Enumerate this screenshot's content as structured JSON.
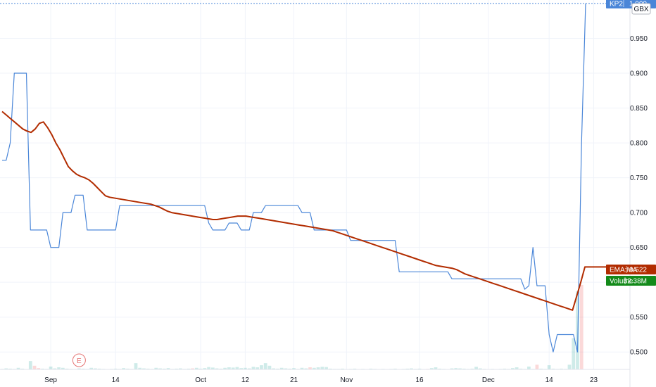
{
  "chart_data": {
    "type": "line",
    "currency": "GBX",
    "ylim": [
      0.475,
      1.005
    ],
    "y_ticks": [
      0.5,
      0.55,
      0.6,
      0.65,
      0.7,
      0.75,
      0.8,
      0.85,
      0.9,
      0.95
    ],
    "y_tick_labels": [
      "0.500",
      "0.550",
      "0.600",
      "0.650",
      "0.700",
      "0.750",
      "0.800",
      "0.850",
      "0.900",
      "0.950"
    ],
    "x_tick_labels": [
      {
        "label": "Sep",
        "i": 12
      },
      {
        "label": "14",
        "i": 28
      },
      {
        "label": "Oct",
        "i": 49
      },
      {
        "label": "12",
        "i": 60
      },
      {
        "label": "21",
        "i": 72
      },
      {
        "label": "Nov",
        "i": 85
      },
      {
        "label": "16",
        "i": 103
      },
      {
        "label": "Dec",
        "i": 120
      },
      {
        "label": "14",
        "i": 135
      },
      {
        "label": "23",
        "i": 146
      }
    ],
    "earnings_marker": {
      "label": "E",
      "i": 19
    },
    "series": [
      {
        "name": "KP2",
        "color": "#4a86d8",
        "last_value": "1.000",
        "values": [
          0.775,
          0.775,
          0.8,
          0.9,
          0.9,
          0.9,
          0.9,
          0.675,
          0.675,
          0.675,
          0.675,
          0.675,
          0.65,
          0.65,
          0.65,
          0.7,
          0.7,
          0.7,
          0.725,
          0.725,
          0.725,
          0.675,
          0.675,
          0.675,
          0.675,
          0.675,
          0.675,
          0.675,
          0.675,
          0.71,
          0.71,
          0.71,
          0.71,
          0.71,
          0.71,
          0.71,
          0.71,
          0.71,
          0.71,
          0.71,
          0.71,
          0.71,
          0.71,
          0.71,
          0.71,
          0.71,
          0.71,
          0.71,
          0.71,
          0.71,
          0.71,
          0.685,
          0.675,
          0.675,
          0.675,
          0.675,
          0.685,
          0.685,
          0.685,
          0.675,
          0.675,
          0.675,
          0.7,
          0.7,
          0.7,
          0.71,
          0.71,
          0.71,
          0.71,
          0.71,
          0.71,
          0.71,
          0.71,
          0.71,
          0.7,
          0.7,
          0.7,
          0.675,
          0.675,
          0.675,
          0.675,
          0.675,
          0.675,
          0.675,
          0.675,
          0.675,
          0.66,
          0.66,
          0.66,
          0.66,
          0.66,
          0.66,
          0.66,
          0.66,
          0.66,
          0.66,
          0.66,
          0.66,
          0.615,
          0.615,
          0.615,
          0.615,
          0.615,
          0.615,
          0.615,
          0.615,
          0.615,
          0.615,
          0.615,
          0.615,
          0.615,
          0.605,
          0.605,
          0.605,
          0.605,
          0.605,
          0.605,
          0.605,
          0.605,
          0.605,
          0.605,
          0.605,
          0.605,
          0.605,
          0.605,
          0.605,
          0.605,
          0.605,
          0.605,
          0.59,
          0.595,
          0.65,
          0.595,
          0.595,
          0.595,
          0.525,
          0.5,
          0.525,
          0.525,
          0.525,
          0.525,
          0.525,
          0.5,
          0.8,
          1.0
        ]
      },
      {
        "name": "EMA:MA",
        "color": "#b22c00",
        "last_value": "0.622",
        "values": [
          0.845,
          0.84,
          0.835,
          0.83,
          0.825,
          0.82,
          0.817,
          0.815,
          0.82,
          0.828,
          0.83,
          0.822,
          0.812,
          0.8,
          0.79,
          0.778,
          0.766,
          0.76,
          0.755,
          0.752,
          0.75,
          0.747,
          0.742,
          0.736,
          0.73,
          0.724,
          0.722,
          0.721,
          0.72,
          0.719,
          0.718,
          0.717,
          0.716,
          0.715,
          0.714,
          0.713,
          0.712,
          0.71,
          0.708,
          0.705,
          0.702,
          0.7,
          0.699,
          0.698,
          0.697,
          0.696,
          0.695,
          0.694,
          0.693,
          0.692,
          0.691,
          0.69,
          0.69,
          0.691,
          0.692,
          0.693,
          0.694,
          0.695,
          0.695,
          0.695,
          0.694,
          0.693,
          0.692,
          0.691,
          0.69,
          0.689,
          0.688,
          0.687,
          0.686,
          0.685,
          0.684,
          0.683,
          0.682,
          0.681,
          0.68,
          0.679,
          0.678,
          0.677,
          0.676,
          0.675,
          0.674,
          0.672,
          0.67,
          0.668,
          0.666,
          0.664,
          0.662,
          0.66,
          0.658,
          0.656,
          0.654,
          0.652,
          0.65,
          0.648,
          0.646,
          0.644,
          0.642,
          0.64,
          0.638,
          0.636,
          0.634,
          0.632,
          0.63,
          0.628,
          0.626,
          0.624,
          0.623,
          0.622,
          0.621,
          0.62,
          0.618,
          0.615,
          0.612,
          0.61,
          0.608,
          0.606,
          0.604,
          0.602,
          0.6,
          0.598,
          0.596,
          0.594,
          0.592,
          0.59,
          0.588,
          0.586,
          0.584,
          0.582,
          0.58,
          0.578,
          0.576,
          0.574,
          0.572,
          0.57,
          0.568,
          0.566,
          0.564,
          0.562,
          0.56,
          0.58,
          0.6,
          0.622,
          0.622,
          0.622,
          0.622,
          0.622,
          0.622,
          0.622,
          0.622,
          0.622
        ]
      }
    ],
    "volume": {
      "name": "Volume",
      "last_value": "32.38M",
      "color_up": "#26a69a",
      "color_down": "#ef5350",
      "values": [
        0.2,
        0.4,
        0.3,
        0.2,
        0.6,
        0.3,
        0.1,
        3.2,
        1.4,
        0.5,
        0.3,
        0.2,
        1.1,
        0.4,
        0.8,
        0.6,
        0.3,
        0.2,
        0.1,
        0.4,
        0.3,
        0.2,
        0.6,
        0.4,
        0.3,
        0.2,
        0.1,
        0.2,
        0.3,
        0.2,
        0.5,
        0.3,
        0.2,
        2.4,
        0.6,
        0.4,
        0.3,
        0.2,
        0.6,
        0.4,
        0.3,
        0.5,
        0.2,
        0.3,
        0.4,
        0.2,
        0.3,
        0.4,
        0.6,
        0.3,
        0.5,
        0.9,
        0.7,
        0.4,
        0.3,
        0.6,
        0.8,
        0.7,
        0.9,
        0.5,
        0.6,
        0.4,
        1.0,
        0.8,
        1.6,
        2.4,
        1.4,
        0.4,
        0.3,
        0.6,
        0.4,
        0.3,
        0.5,
        0.2,
        0.6,
        0.4,
        0.8,
        0.6,
        0.8,
        1.0,
        0.9,
        0.3,
        0.2,
        0.2,
        0.3,
        0.1,
        0.2,
        0.3,
        0.1,
        0.2,
        0.1,
        0.3,
        0.2,
        0.1,
        0.2,
        0.1,
        0.2,
        0.3,
        0.1,
        0.2,
        0.3,
        0.4,
        0.2,
        0.3,
        0.1,
        0.2,
        0.5,
        0.8,
        0.3,
        0.2,
        0.1,
        0.4,
        0.5,
        0.4,
        0.3,
        0.2,
        0.3,
        1.0,
        0.4,
        0.2,
        0.1,
        0.2,
        0.1,
        0.2,
        0.3,
        0.2,
        0.5,
        0.8,
        0.3,
        0.2,
        1.1,
        0.2,
        1.8,
        0.3,
        0.2,
        1.6,
        0.3,
        0.2,
        0.3,
        0.2,
        1.8,
        12.0,
        30.0,
        32.4
      ],
      "down_indices": [
        8,
        9,
        47,
        76,
        105,
        110,
        132,
        143
      ],
      "vmax": 32.4
    }
  }
}
